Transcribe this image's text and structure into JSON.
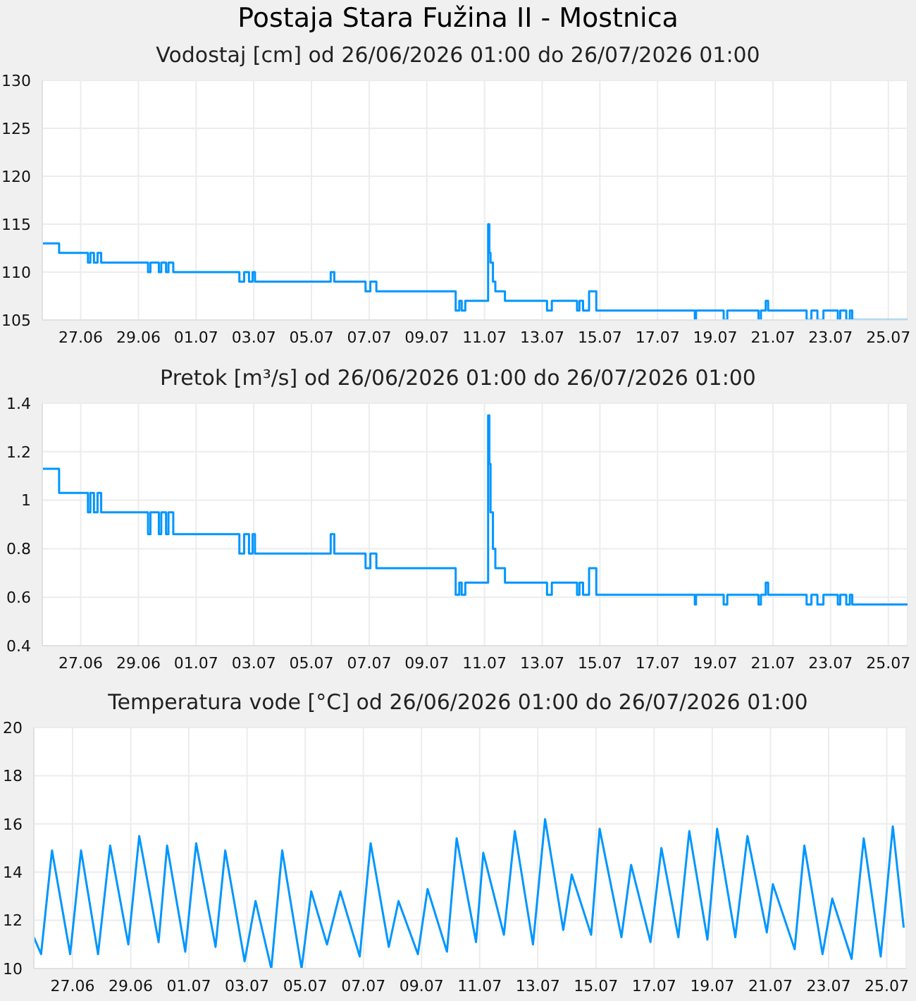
{
  "chart_data": [
    {
      "type": "step",
      "title": "Postaja Stara Fužina II - Mostnica",
      "subtitle": "Vodostaj [cm] od 26/06/2026 01:00 do 26/07/2026 01:00",
      "grid": true,
      "color": "#0096ff",
      "x": [
        "2026-06-26T01:00",
        "2026-06-26T15:00",
        "2026-06-27T15:00",
        "2026-06-27T17:00",
        "2026-06-27T20:00",
        "2026-06-27T23:00",
        "2026-06-28T02:00",
        "2026-06-29T17:00",
        "2026-06-29T19:00",
        "2026-06-30T02:00",
        "2026-06-30T04:00",
        "2026-06-30T08:00",
        "2026-06-30T10:00",
        "2026-06-30T14:00",
        "2026-07-02T21:00",
        "2026-07-03T01:00",
        "2026-07-03T05:00",
        "2026-07-03T08:00",
        "2026-07-03T10:00",
        "2026-07-06T01:00",
        "2026-07-06T04:00",
        "2026-07-07T06:00",
        "2026-07-07T10:00",
        "2026-07-07T15:00",
        "2026-07-10T09:00",
        "2026-07-10T12:00",
        "2026-07-10T14:00",
        "2026-07-10T17:00",
        "2026-07-11T12:00",
        "2026-07-11T13:00",
        "2026-07-11T14:00",
        "2026-07-11T16:00",
        "2026-07-11T18:00",
        "2026-07-12T02:00",
        "2026-07-13T13:00",
        "2026-07-13T17:00",
        "2026-07-14T14:00",
        "2026-07-14T16:00",
        "2026-07-14T19:00",
        "2026-07-15T00:00",
        "2026-07-15T06:00",
        "2026-07-18T16:00",
        "2026-07-18T17:00",
        "2026-07-19T16:00",
        "2026-07-19T19:00",
        "2026-07-20T21:00",
        "2026-07-20T23:00",
        "2026-07-21T03:00",
        "2026-07-21T05:00",
        "2026-07-22T13:00",
        "2026-07-22T17:00",
        "2026-07-22T22:00",
        "2026-07-23T03:00",
        "2026-07-23T15:00",
        "2026-07-23T17:00",
        "2026-07-23T22:00",
        "2026-07-24T01:00",
        "2026-07-24T03:00",
        "2026-07-26T01:00"
      ],
      "values": [
        113,
        112,
        111,
        112,
        111,
        112,
        111,
        110,
        111,
        110,
        111,
        110,
        111,
        110,
        109,
        110,
        109,
        110,
        109,
        110,
        109,
        108,
        109,
        108,
        106,
        107,
        106,
        107,
        115,
        112,
        111,
        109,
        108,
        107,
        106,
        107,
        106,
        107,
        106,
        108,
        106,
        105,
        106,
        105,
        106,
        105,
        106,
        107,
        106,
        105,
        106,
        105,
        106,
        105,
        106,
        105,
        106,
        105,
        105
      ],
      "xlim": [
        "2026-06-26T01:00",
        "2026-07-26T01:00"
      ],
      "xticks": [
        {
          "value": "2026-06-27T09:00",
          "label": "27.06"
        },
        {
          "value": "2026-06-29T09:00",
          "label": "29.06"
        },
        {
          "value": "2026-07-01T09:00",
          "label": "01.07"
        },
        {
          "value": "2026-07-03T09:00",
          "label": "03.07"
        },
        {
          "value": "2026-07-05T09:00",
          "label": "05.07"
        },
        {
          "value": "2026-07-07T09:00",
          "label": "07.07"
        },
        {
          "value": "2026-07-09T09:00",
          "label": "09.07"
        },
        {
          "value": "2026-07-11T09:00",
          "label": "11.07"
        },
        {
          "value": "2026-07-13T09:00",
          "label": "13.07"
        },
        {
          "value": "2026-07-15T09:00",
          "label": "15.07"
        },
        {
          "value": "2026-07-17T09:00",
          "label": "17.07"
        },
        {
          "value": "2026-07-19T09:00",
          "label": "19.07"
        },
        {
          "value": "2026-07-21T09:00",
          "label": "21.07"
        },
        {
          "value": "2026-07-23T09:00",
          "label": "23.07"
        },
        {
          "value": "2026-07-25T09:00",
          "label": "25.07"
        }
      ],
      "ylim": [
        105,
        130
      ],
      "yticks": [
        105,
        110,
        115,
        120,
        125,
        130
      ]
    },
    {
      "type": "step",
      "title": "Pretok [m³/s] od 26/06/2026 01:00 do 26/07/2026 01:00",
      "grid": true,
      "color": "#0096ff",
      "x": [
        "2026-06-26T01:00",
        "2026-06-26T15:00",
        "2026-06-27T15:00",
        "2026-06-27T17:00",
        "2026-06-27T20:00",
        "2026-06-27T23:00",
        "2026-06-28T02:00",
        "2026-06-29T17:00",
        "2026-06-29T19:00",
        "2026-06-30T02:00",
        "2026-06-30T04:00",
        "2026-06-30T08:00",
        "2026-06-30T10:00",
        "2026-06-30T14:00",
        "2026-07-02T21:00",
        "2026-07-03T01:00",
        "2026-07-03T05:00",
        "2026-07-03T08:00",
        "2026-07-03T10:00",
        "2026-07-06T01:00",
        "2026-07-06T04:00",
        "2026-07-07T06:00",
        "2026-07-07T10:00",
        "2026-07-07T15:00",
        "2026-07-10T09:00",
        "2026-07-10T12:00",
        "2026-07-10T14:00",
        "2026-07-10T17:00",
        "2026-07-11T12:00",
        "2026-07-11T13:00",
        "2026-07-11T14:00",
        "2026-07-11T16:00",
        "2026-07-11T18:00",
        "2026-07-12T02:00",
        "2026-07-13T13:00",
        "2026-07-13T17:00",
        "2026-07-14T14:00",
        "2026-07-14T16:00",
        "2026-07-14T19:00",
        "2026-07-15T00:00",
        "2026-07-15T06:00",
        "2026-07-18T16:00",
        "2026-07-18T17:00",
        "2026-07-19T16:00",
        "2026-07-19T19:00",
        "2026-07-20T21:00",
        "2026-07-20T23:00",
        "2026-07-21T03:00",
        "2026-07-21T05:00",
        "2026-07-22T13:00",
        "2026-07-22T17:00",
        "2026-07-22T22:00",
        "2026-07-23T03:00",
        "2026-07-23T15:00",
        "2026-07-23T17:00",
        "2026-07-23T22:00",
        "2026-07-24T01:00",
        "2026-07-24T03:00",
        "2026-07-26T01:00"
      ],
      "values": [
        1.13,
        1.03,
        0.95,
        1.03,
        0.95,
        1.03,
        0.95,
        0.86,
        0.95,
        0.86,
        0.95,
        0.86,
        0.95,
        0.86,
        0.78,
        0.86,
        0.78,
        0.86,
        0.78,
        0.86,
        0.78,
        0.72,
        0.78,
        0.72,
        0.61,
        0.66,
        0.61,
        0.66,
        1.35,
        1.15,
        0.95,
        0.8,
        0.72,
        0.66,
        0.61,
        0.66,
        0.61,
        0.66,
        0.61,
        0.72,
        0.61,
        0.57,
        0.61,
        0.57,
        0.61,
        0.57,
        0.61,
        0.66,
        0.61,
        0.57,
        0.61,
        0.57,
        0.61,
        0.57,
        0.61,
        0.57,
        0.61,
        0.57,
        0.57
      ],
      "xlim": [
        "2026-06-26T01:00",
        "2026-07-26T01:00"
      ],
      "xticks": [
        {
          "value": "2026-06-27T09:00",
          "label": "27.06"
        },
        {
          "value": "2026-06-29T09:00",
          "label": "29.06"
        },
        {
          "value": "2026-07-01T09:00",
          "label": "01.07"
        },
        {
          "value": "2026-07-03T09:00",
          "label": "03.07"
        },
        {
          "value": "2026-07-05T09:00",
          "label": "05.07"
        },
        {
          "value": "2026-07-07T09:00",
          "label": "07.07"
        },
        {
          "value": "2026-07-09T09:00",
          "label": "09.07"
        },
        {
          "value": "2026-07-11T09:00",
          "label": "11.07"
        },
        {
          "value": "2026-07-13T09:00",
          "label": "13.07"
        },
        {
          "value": "2026-07-15T09:00",
          "label": "15.07"
        },
        {
          "value": "2026-07-17T09:00",
          "label": "17.07"
        },
        {
          "value": "2026-07-19T09:00",
          "label": "19.07"
        },
        {
          "value": "2026-07-21T09:00",
          "label": "21.07"
        },
        {
          "value": "2026-07-23T09:00",
          "label": "23.07"
        },
        {
          "value": "2026-07-25T09:00",
          "label": "25.07"
        }
      ],
      "ylim": [
        0.4,
        1.4
      ],
      "yticks": [
        0.4,
        0.6,
        0.8,
        1,
        1.2,
        1.4
      ]
    },
    {
      "type": "line",
      "title": "Temperatura vode [°C] od 26/06/2026 01:00 do 26/07/2026 01:00",
      "grid": true,
      "color": "#0096ff",
      "x": [
        "2026-06-26T01:00",
        "2026-06-26T07:00",
        "2026-06-26T16:00",
        "2026-06-27T07:00",
        "2026-06-27T16:00",
        "2026-06-28T06:00",
        "2026-06-28T16:00",
        "2026-06-29T07:00",
        "2026-06-29T16:00",
        "2026-06-30T08:00",
        "2026-06-30T15:00",
        "2026-07-01T06:00",
        "2026-07-01T15:00",
        "2026-07-02T07:00",
        "2026-07-02T15:00",
        "2026-07-03T07:00",
        "2026-07-03T16:00",
        "2026-07-04T05:00",
        "2026-07-04T14:00",
        "2026-07-05T06:00",
        "2026-07-05T14:00",
        "2026-07-06T03:00",
        "2026-07-06T14:00",
        "2026-07-07T06:00",
        "2026-07-07T15:00",
        "2026-07-08T06:00",
        "2026-07-08T14:00",
        "2026-07-09T06:00",
        "2026-07-09T14:00",
        "2026-07-10T06:00",
        "2026-07-10T14:00",
        "2026-07-11T06:00",
        "2026-07-11T12:00",
        "2026-07-12T05:00",
        "2026-07-12T14:00",
        "2026-07-13T05:00",
        "2026-07-13T15:00",
        "2026-07-14T06:00",
        "2026-07-14T13:00",
        "2026-07-15T05:00",
        "2026-07-15T12:00",
        "2026-07-16T06:00",
        "2026-07-16T14:00",
        "2026-07-17T06:00",
        "2026-07-17T15:00",
        "2026-07-18T05:00",
        "2026-07-18T14:00",
        "2026-07-19T05:00",
        "2026-07-19T13:00",
        "2026-07-20T04:00",
        "2026-07-20T14:00",
        "2026-07-21T06:00",
        "2026-07-21T11:00",
        "2026-07-22T05:00",
        "2026-07-22T13:00",
        "2026-07-23T04:00",
        "2026-07-23T12:00",
        "2026-07-24T04:00",
        "2026-07-24T14:00",
        "2026-07-25T04:00",
        "2026-07-25T14:00",
        "2026-07-25T23:00"
      ],
      "values": [
        11.3,
        10.6,
        14.9,
        10.6,
        14.9,
        10.6,
        15.1,
        11.0,
        15.5,
        11.1,
        15.1,
        10.7,
        15.2,
        10.9,
        14.9,
        10.3,
        12.8,
        10.0,
        14.9,
        10.0,
        13.2,
        11.0,
        13.2,
        10.5,
        15.2,
        10.9,
        12.8,
        10.6,
        13.3,
        10.7,
        15.4,
        11.1,
        14.8,
        11.4,
        15.7,
        11.0,
        16.2,
        11.6,
        13.9,
        11.4,
        15.8,
        11.3,
        14.3,
        11.1,
        15.0,
        11.3,
        15.7,
        11.2,
        15.8,
        11.3,
        15.5,
        11.5,
        13.5,
        10.8,
        15.1,
        10.6,
        12.9,
        10.4,
        15.4,
        10.5,
        15.9,
        11.7
      ],
      "xlim": [
        "2026-06-26T01:00",
        "2026-07-26T01:00"
      ],
      "xticks": [
        {
          "value": "2026-06-27T09:00",
          "label": "27.06"
        },
        {
          "value": "2026-06-29T09:00",
          "label": "29.06"
        },
        {
          "value": "2026-07-01T09:00",
          "label": "01.07"
        },
        {
          "value": "2026-07-03T09:00",
          "label": "03.07"
        },
        {
          "value": "2026-07-05T09:00",
          "label": "05.07"
        },
        {
          "value": "2026-07-07T09:00",
          "label": "07.07"
        },
        {
          "value": "2026-07-09T09:00",
          "label": "09.07"
        },
        {
          "value": "2026-07-11T09:00",
          "label": "11.07"
        },
        {
          "value": "2026-07-13T09:00",
          "label": "13.07"
        },
        {
          "value": "2026-07-15T09:00",
          "label": "15.07"
        },
        {
          "value": "2026-07-17T09:00",
          "label": "17.07"
        },
        {
          "value": "2026-07-19T09:00",
          "label": "19.07"
        },
        {
          "value": "2026-07-21T09:00",
          "label": "21.07"
        },
        {
          "value": "2026-07-23T09:00",
          "label": "23.07"
        },
        {
          "value": "2026-07-25T09:00",
          "label": "25.07"
        }
      ],
      "ylim": [
        10,
        20
      ],
      "yticks": [
        10,
        12,
        14,
        16,
        18,
        20
      ]
    }
  ]
}
